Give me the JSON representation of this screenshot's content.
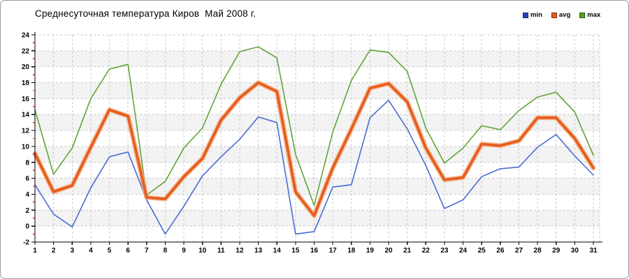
{
  "window": {
    "background": "#ffffff",
    "border_color": "#9a9a9a"
  },
  "chart_data": {
    "type": "line",
    "title": "Среднесуточная температура Киров  Май 2008 г.",
    "xlabel": "",
    "ylabel": "",
    "x": [
      1,
      2,
      3,
      4,
      5,
      6,
      7,
      8,
      9,
      10,
      11,
      12,
      13,
      14,
      15,
      16,
      17,
      18,
      19,
      20,
      21,
      22,
      23,
      24,
      25,
      26,
      27,
      28,
      29,
      30,
      31
    ],
    "y_ticks": [
      24,
      22,
      20,
      18,
      16,
      14,
      12,
      10,
      8,
      6,
      4,
      2,
      0,
      -2
    ],
    "ylim": [
      -2,
      24
    ],
    "ytick_step": 2,
    "grid": "dashed",
    "legend_position": "top-right",
    "series": [
      {
        "name": "min",
        "color": "#4a6cd3",
        "legend_color": "#2744c9",
        "width": 1.6,
        "values": [
          5.2,
          1.5,
          -0.1,
          4.8,
          8.7,
          9.3,
          3.3,
          -1.0,
          2.5,
          6.3,
          8.7,
          10.9,
          13.7,
          13.0,
          -1.0,
          -0.7,
          4.9,
          5.2,
          13.6,
          15.8,
          12.2,
          7.6,
          2.2,
          3.3,
          6.2,
          7.2,
          7.4,
          9.9,
          11.5,
          8.8,
          6.4
        ]
      },
      {
        "name": "avg",
        "color": "#e55c1e",
        "halo_color": "#f5a977",
        "legend_color": "#e55c1e",
        "width": 3.6,
        "values": [
          9.1,
          4.3,
          5.1,
          9.9,
          14.6,
          13.8,
          3.6,
          3.4,
          6.2,
          8.5,
          13.3,
          16.1,
          18.0,
          16.9,
          4.3,
          1.3,
          7.3,
          12.2,
          17.3,
          17.9,
          15.6,
          9.8,
          5.8,
          6.1,
          10.3,
          10.1,
          10.7,
          13.6,
          13.6,
          11.0,
          7.3
        ]
      },
      {
        "name": "max",
        "color": "#62a437",
        "legend_color": "#55a321",
        "width": 1.6,
        "values": [
          14.6,
          6.5,
          9.8,
          16.0,
          19.7,
          20.3,
          3.9,
          5.6,
          9.8,
          12.3,
          17.8,
          21.9,
          22.5,
          21.1,
          9.0,
          2.6,
          11.8,
          18.3,
          22.1,
          21.8,
          19.4,
          12.3,
          7.9,
          9.8,
          12.6,
          12.1,
          14.5,
          16.2,
          16.8,
          14.3,
          8.9
        ]
      }
    ],
    "style": {
      "band_color": "#f3f3f3",
      "gridline_color": "#c8c8c8",
      "axis_color": "#000000",
      "minor_tick_color": "#d42a1e",
      "tick_label_color": "#000000"
    }
  }
}
